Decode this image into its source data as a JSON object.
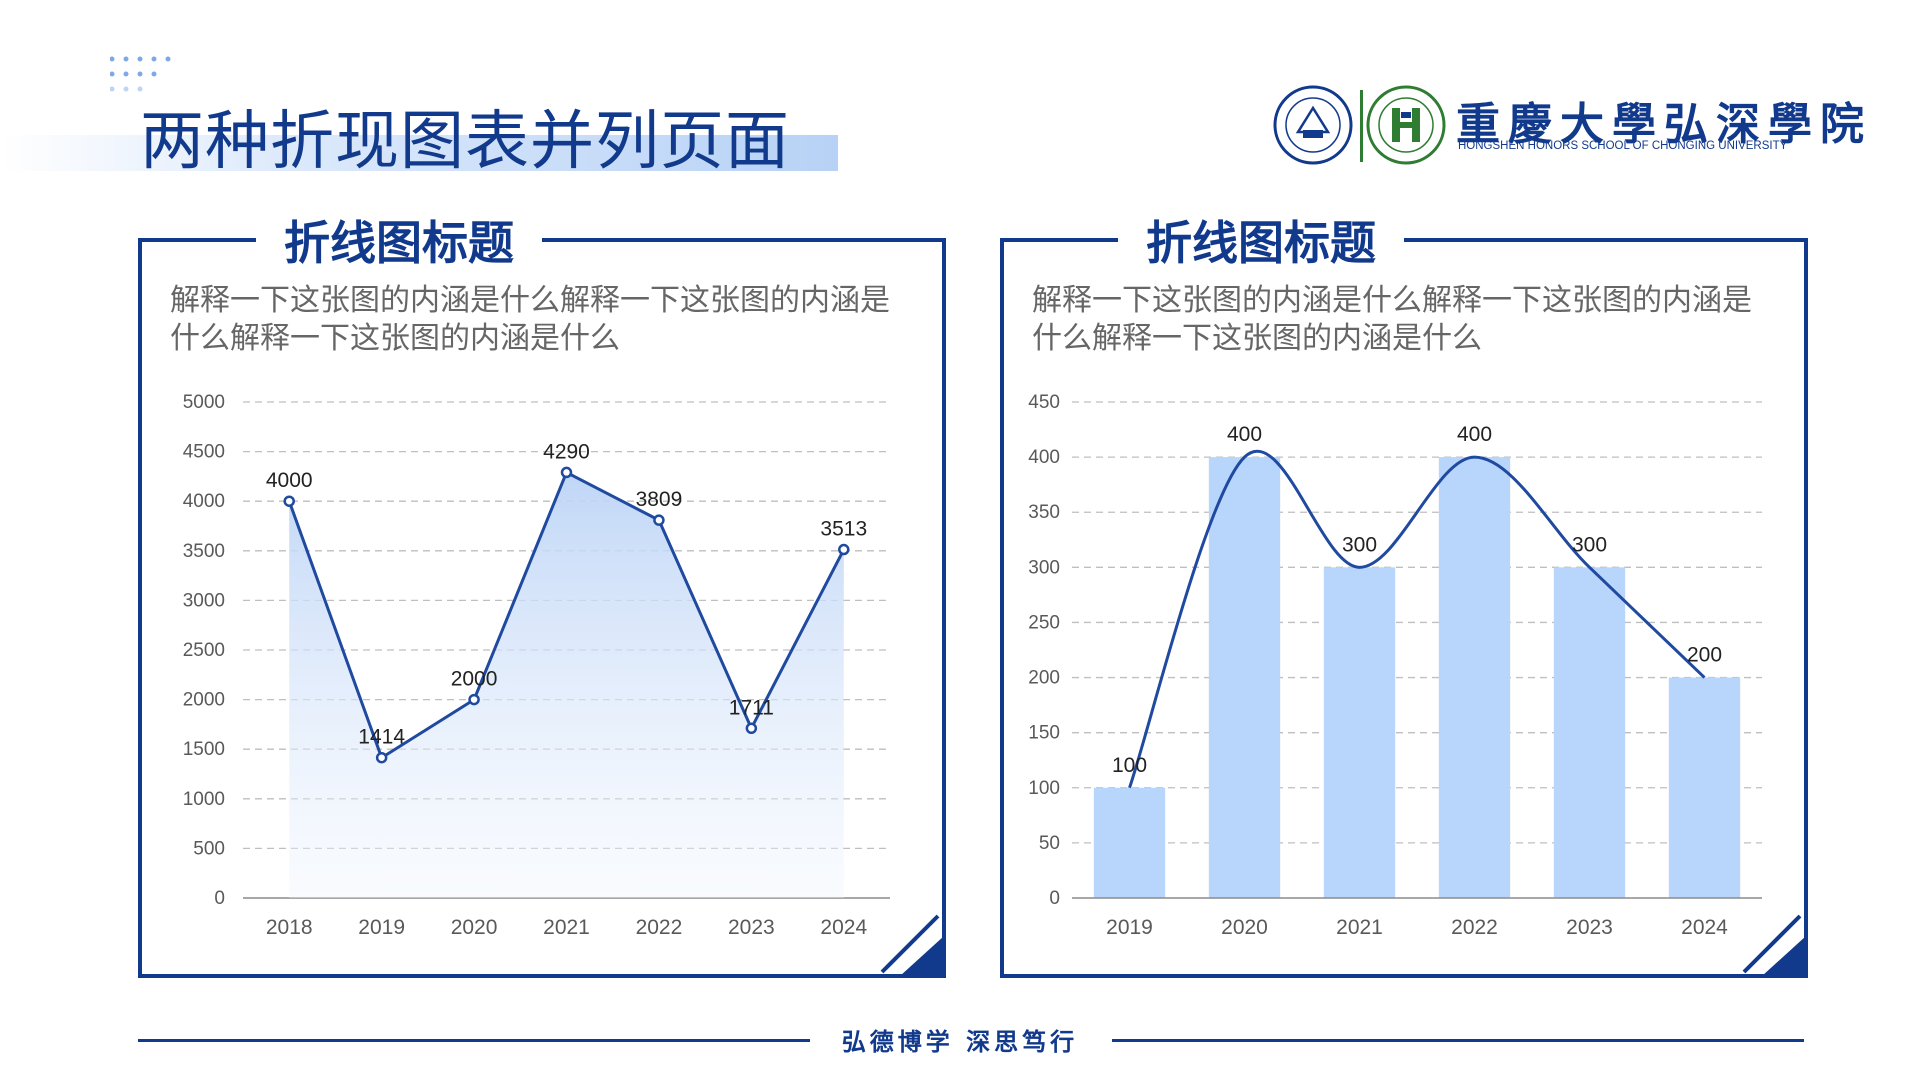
{
  "page": {
    "title": "两种折现图表并列页面"
  },
  "logo": {
    "name_cn": "重慶大學弘深學院",
    "name_en": "HONGSHEN HONORS SCHOOL OF CHONGING UNIVERSITY"
  },
  "panels": [
    {
      "title": "折线图标题",
      "description": "解释一下这张图的内涵是什么解释一下这张图的内涵是什么解释一下这张图的内涵是什么"
    },
    {
      "title": "折线图标题",
      "description": "解释一下这张图的内涵是什么解释一下这张图的内涵是什么解释一下这张图的内涵是什么"
    }
  ],
  "footer": {
    "motto": "弘德博学  深思笃行"
  },
  "colors": {
    "primary": "#123a8c",
    "line": "#1f4aa0",
    "bar": "#b8d5fb",
    "grid": "#bfbfbf",
    "axis_text": "#595959"
  },
  "chart_data": [
    {
      "type": "area",
      "categories": [
        "2018",
        "2019",
        "2020",
        "2021",
        "2022",
        "2023",
        "2024"
      ],
      "values": [
        4000,
        1414,
        2000,
        4290,
        3809,
        1711,
        3513
      ],
      "ylim": [
        0,
        5000
      ],
      "yticks": [
        0,
        500,
        1000,
        1500,
        2000,
        2500,
        3000,
        3500,
        4000,
        4500,
        5000
      ],
      "grid": true,
      "data_labels": true
    },
    {
      "type": "bar",
      "categories": [
        "2019",
        "2020",
        "2021",
        "2022",
        "2023",
        "2024"
      ],
      "values": [
        100,
        400,
        300,
        400,
        300,
        200
      ],
      "ylim": [
        0,
        450
      ],
      "yticks": [
        0,
        50,
        100,
        150,
        200,
        250,
        300,
        350,
        400,
        450
      ],
      "grid": true,
      "data_labels": true,
      "overlay_line": "smooth"
    }
  ]
}
